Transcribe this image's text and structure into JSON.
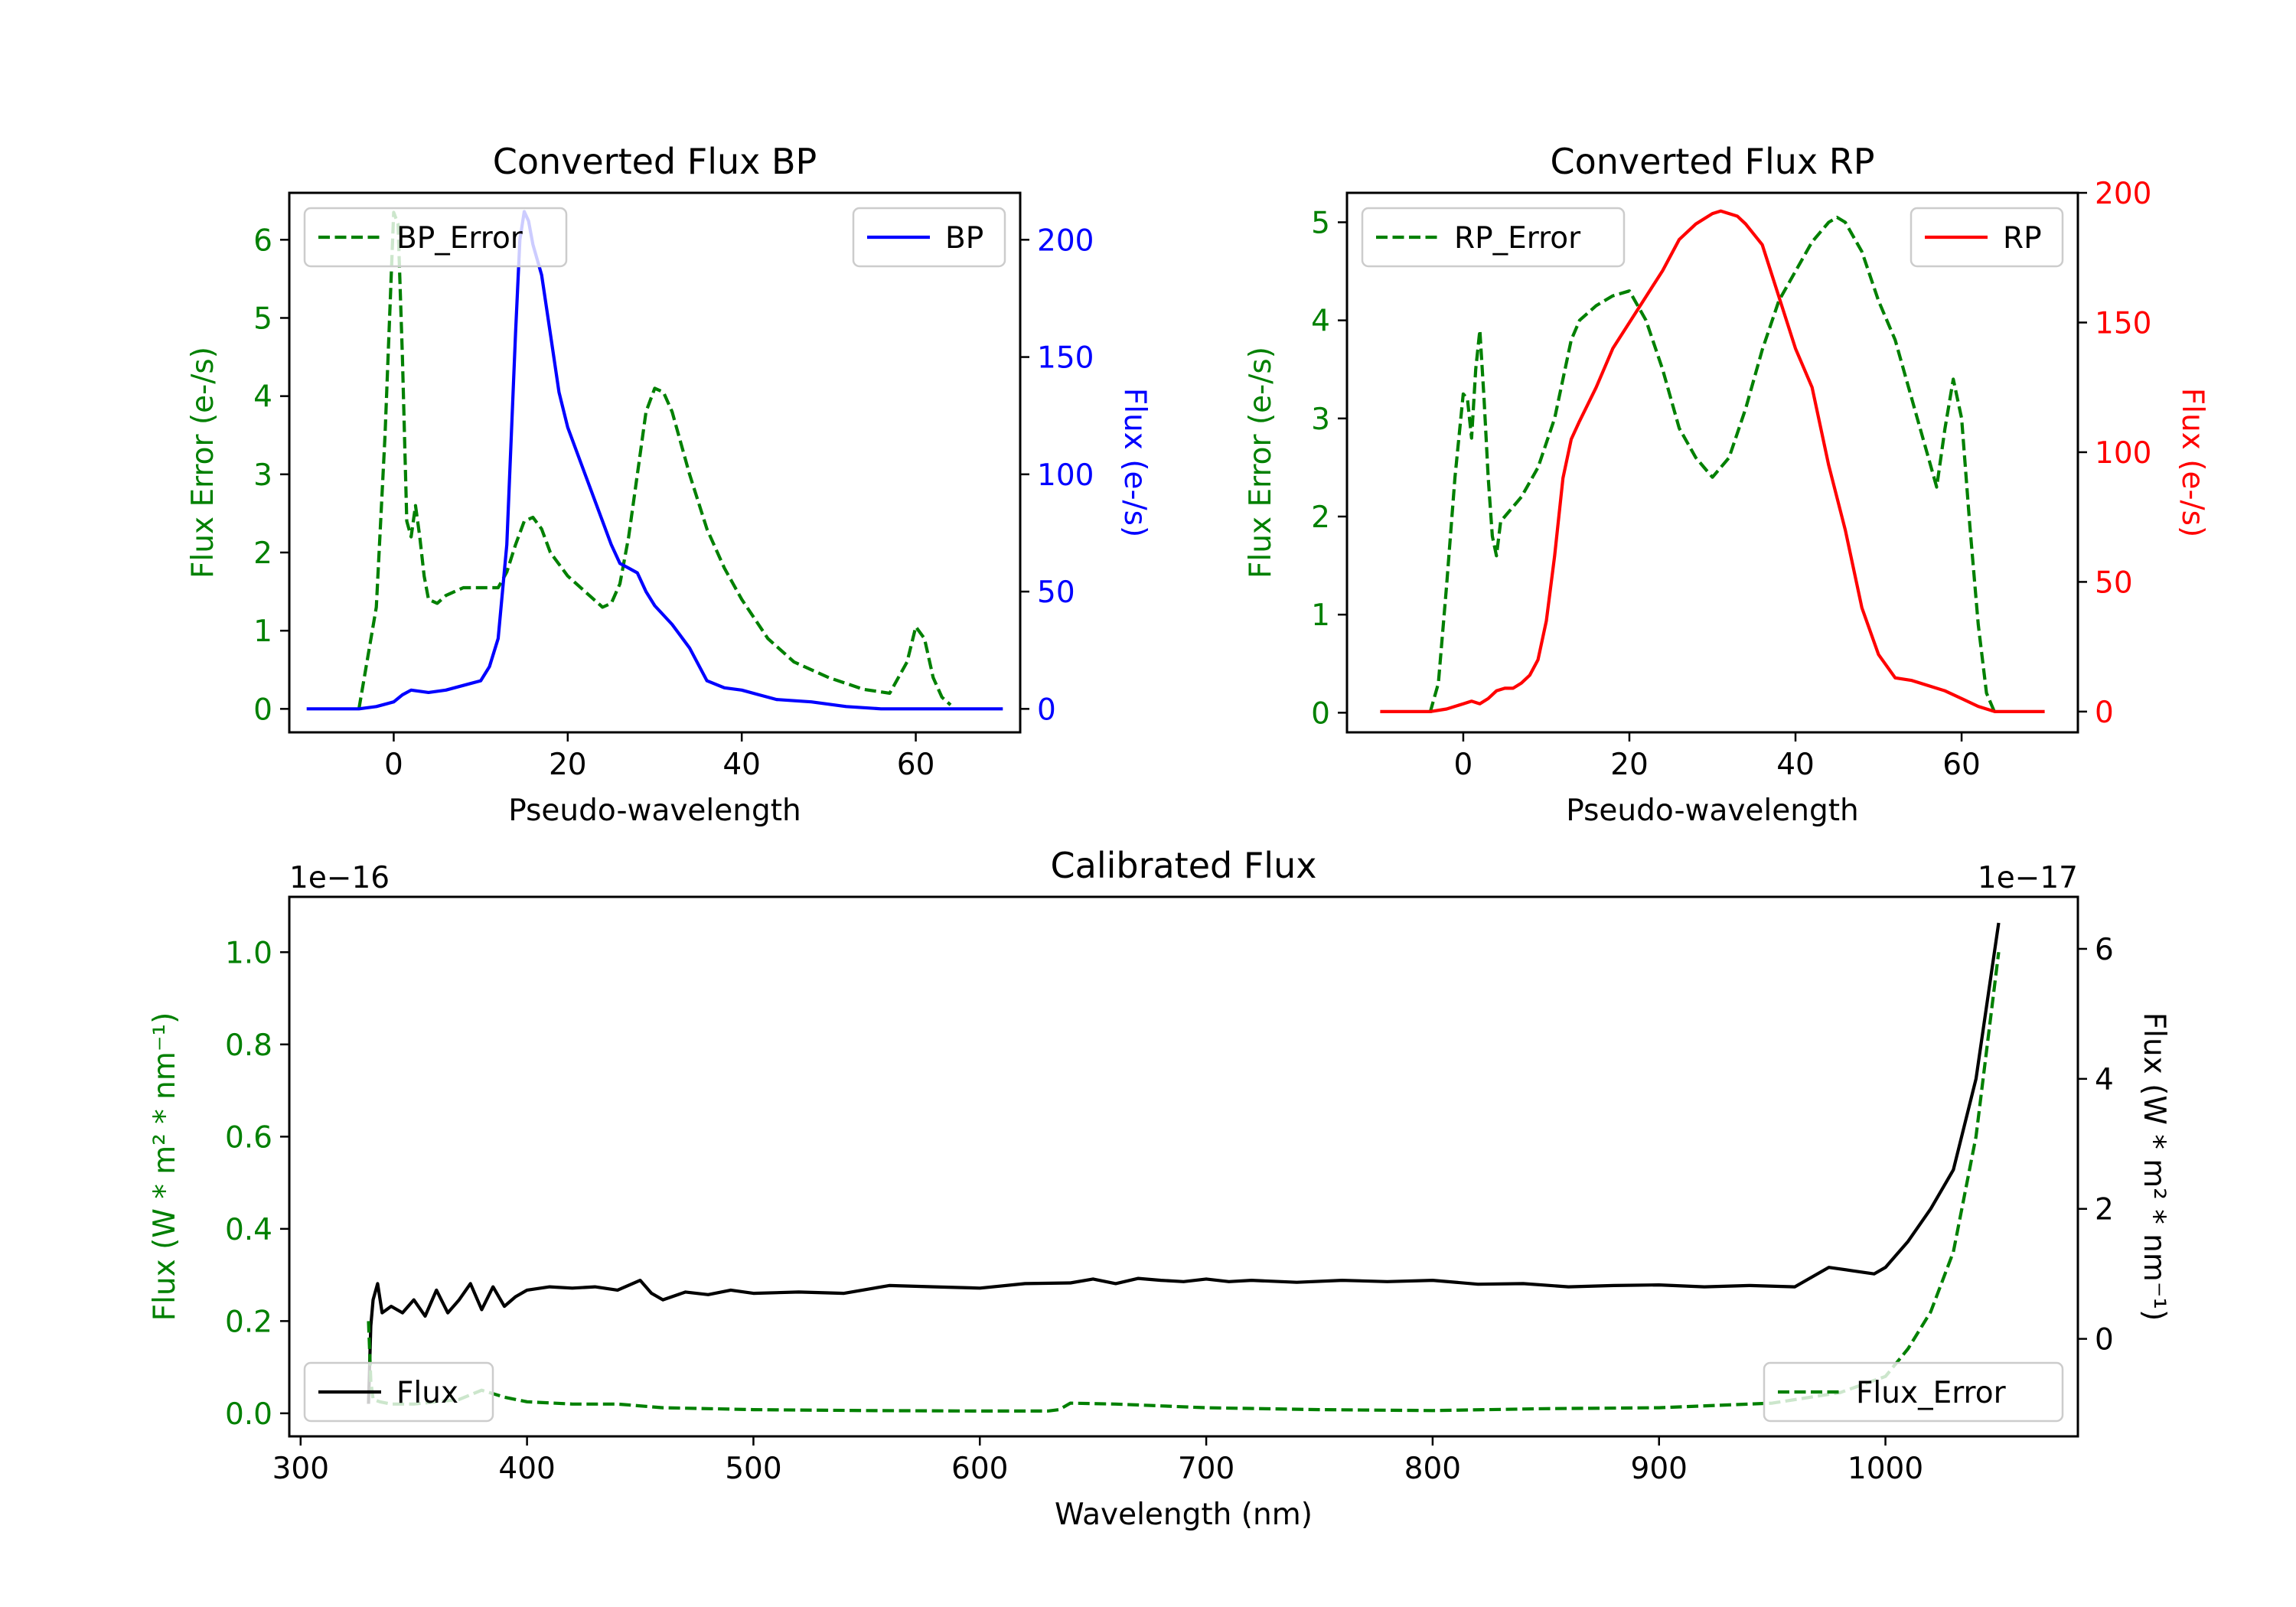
{
  "chart_data": [
    {
      "type": "line",
      "title": "Converted Flux BP",
      "xlabel": "Pseudo-wavelength",
      "ylabel_left": "Flux Error (e-/s)",
      "ylabel_right": "Flux (e-/s)",
      "xlim": [
        -12,
        72
      ],
      "ylim_left": [
        -0.3,
        6.6
      ],
      "ylim_right": [
        -10,
        220
      ],
      "xticks": [
        {
          "v": 0,
          "label": "0"
        },
        {
          "v": 20,
          "label": "20"
        },
        {
          "v": 40,
          "label": "40"
        },
        {
          "v": 60,
          "label": "60"
        }
      ],
      "yticks_left": [
        {
          "v": 0,
          "label": "0"
        },
        {
          "v": 1,
          "label": "1"
        },
        {
          "v": 2,
          "label": "2"
        },
        {
          "v": 3,
          "label": "3"
        },
        {
          "v": 4,
          "label": "4"
        },
        {
          "v": 5,
          "label": "5"
        },
        {
          "v": 6,
          "label": "6"
        }
      ],
      "yticks_right": [
        {
          "v": 0,
          "label": "0"
        },
        {
          "v": 50,
          "label": "50"
        },
        {
          "v": 100,
          "label": "100"
        },
        {
          "v": 150,
          "label": "150"
        },
        {
          "v": 200,
          "label": "200"
        }
      ],
      "left_color": "#008000",
      "right_color": "#0000ff",
      "legend_left": {
        "label": "BP_Error",
        "position": "upper-left"
      },
      "legend_right": {
        "label": "BP",
        "position": "upper-right"
      },
      "series": [
        {
          "name": "BP_Error",
          "axis": "left",
          "color": "#008000",
          "style": "dashed",
          "x": [
            -4,
            -2,
            -1,
            0,
            0.5,
            1,
            1.5,
            2,
            2.5,
            3,
            3.5,
            4,
            5,
            6,
            7,
            8,
            10,
            12,
            13,
            14,
            15,
            16,
            17,
            18,
            20,
            22,
            24,
            25,
            26,
            27,
            28,
            29,
            30,
            31,
            32,
            34,
            36,
            38,
            40,
            43,
            46,
            50,
            54,
            57,
            59,
            60,
            61,
            62,
            63,
            64
          ],
          "y": [
            0,
            1.3,
            3.5,
            6.35,
            6.2,
            4.5,
            2.4,
            2.2,
            2.6,
            2.2,
            1.7,
            1.4,
            1.35,
            1.45,
            1.5,
            1.55,
            1.55,
            1.55,
            1.75,
            2.1,
            2.4,
            2.45,
            2.3,
            2.0,
            1.7,
            1.5,
            1.3,
            1.35,
            1.6,
            2.2,
            3.0,
            3.8,
            4.1,
            4.05,
            3.8,
            3.0,
            2.3,
            1.8,
            1.4,
            0.9,
            0.6,
            0.4,
            0.25,
            0.2,
            0.6,
            1.05,
            0.9,
            0.4,
            0.15,
            0.05
          ]
        },
        {
          "name": "BP",
          "axis": "right",
          "color": "#0000ff",
          "style": "solid",
          "x": [
            -10,
            -4,
            -2,
            0,
            1,
            2,
            4,
            6,
            8,
            10,
            11,
            12,
            13,
            14,
            14.5,
            15,
            15.5,
            16,
            17,
            18,
            19,
            20,
            22,
            24,
            25,
            26,
            27,
            28,
            29,
            30,
            32,
            34,
            36,
            38,
            40,
            42,
            44,
            48,
            52,
            56,
            60,
            65,
            70
          ],
          "y": [
            0,
            0,
            1,
            3,
            6,
            8,
            7,
            8,
            10,
            12,
            18,
            30,
            70,
            160,
            200,
            212,
            208,
            198,
            185,
            160,
            135,
            120,
            100,
            80,
            70,
            62,
            60,
            58,
            50,
            44,
            36,
            26,
            12,
            9,
            8,
            6,
            4,
            3,
            1,
            0,
            0,
            0,
            0
          ]
        }
      ]
    },
    {
      "type": "line",
      "title": "Converted Flux RP",
      "xlabel": "Pseudo-wavelength",
      "ylabel_left": "Flux Error (e-/s)",
      "ylabel_right": "Flux (e-/s)",
      "xlim": [
        -14,
        74
      ],
      "ylim_left": [
        -0.2,
        5.3
      ],
      "ylim_right": [
        -8,
        200
      ],
      "xticks": [
        {
          "v": 0,
          "label": "0"
        },
        {
          "v": 20,
          "label": "20"
        },
        {
          "v": 40,
          "label": "40"
        },
        {
          "v": 60,
          "label": "60"
        }
      ],
      "yticks_left": [
        {
          "v": 0,
          "label": "0"
        },
        {
          "v": 1,
          "label": "1"
        },
        {
          "v": 2,
          "label": "2"
        },
        {
          "v": 3,
          "label": "3"
        },
        {
          "v": 4,
          "label": "4"
        },
        {
          "v": 5,
          "label": "5"
        }
      ],
      "yticks_right": [
        {
          "v": 0,
          "label": "0"
        },
        {
          "v": 50,
          "label": "50"
        },
        {
          "v": 100,
          "label": "100"
        },
        {
          "v": 150,
          "label": "150"
        },
        {
          "v": 200,
          "label": "200"
        }
      ],
      "left_color": "#008000",
      "right_color": "#ff0000",
      "legend_left": {
        "label": "RP_Error",
        "position": "upper-left"
      },
      "legend_right": {
        "label": "RP",
        "position": "upper-right"
      },
      "series": [
        {
          "name": "RP_Error",
          "axis": "left",
          "color": "#008000",
          "style": "dashed",
          "x": [
            -4,
            -3,
            -2,
            -1,
            0,
            0.5,
            1,
            1.5,
            2,
            2.5,
            3,
            3.5,
            4,
            4.5,
            5,
            7,
            9,
            11,
            13,
            14,
            16,
            18,
            20,
            22,
            24,
            26,
            28,
            30,
            32,
            34,
            36,
            38,
            40,
            42,
            44,
            45,
            46,
            48,
            50,
            52,
            54,
            55,
            56,
            57,
            58,
            59,
            60,
            61,
            62,
            63,
            64
          ],
          "y": [
            0,
            0.3,
            1.3,
            2.4,
            3.25,
            3.2,
            2.8,
            3.5,
            3.9,
            3.2,
            2.4,
            1.8,
            1.6,
            1.95,
            2.0,
            2.2,
            2.5,
            3.0,
            3.8,
            4.0,
            4.15,
            4.25,
            4.3,
            4.0,
            3.5,
            2.9,
            2.6,
            2.4,
            2.6,
            3.1,
            3.7,
            4.2,
            4.5,
            4.8,
            5.0,
            5.05,
            5.0,
            4.7,
            4.2,
            3.8,
            3.2,
            2.9,
            2.6,
            2.3,
            2.9,
            3.4,
            3.0,
            1.9,
            0.9,
            0.2,
            0
          ]
        },
        {
          "name": "RP",
          "axis": "right",
          "color": "#ff0000",
          "style": "solid",
          "x": [
            -10,
            -4,
            -2,
            0,
            1,
            2,
            3,
            4,
            5,
            6,
            7,
            8,
            9,
            10,
            11,
            12,
            13,
            14,
            16,
            18,
            20,
            22,
            24,
            26,
            28,
            30,
            31,
            32,
            33,
            34,
            36,
            38,
            40,
            42,
            44,
            46,
            48,
            50,
            52,
            54,
            56,
            58,
            60,
            62,
            64,
            66,
            70
          ],
          "y": [
            0,
            0,
            1,
            3,
            4,
            3,
            5,
            8,
            9,
            9,
            11,
            14,
            20,
            35,
            60,
            90,
            105,
            112,
            125,
            140,
            150,
            160,
            170,
            182,
            188,
            192,
            193,
            192,
            191,
            188,
            180,
            160,
            140,
            125,
            95,
            70,
            40,
            22,
            13,
            12,
            10,
            8,
            5,
            2,
            0,
            0,
            0
          ]
        }
      ]
    },
    {
      "type": "line",
      "title": "Calibrated Flux",
      "xlabel": "Wavelength (nm)",
      "ylabel_left": "Flux (W * m² * nm⁻¹)",
      "ylabel_right": "Flux (W * m² * nm⁻¹)",
      "left_offset_label": "1e−16",
      "right_offset_label": "1e−17",
      "xlim": [
        295,
        1085
      ],
      "ylim_left": [
        -0.05,
        1.12
      ],
      "ylim_right": [
        -1.5,
        6.8
      ],
      "xticks": [
        {
          "v": 300,
          "label": "300"
        },
        {
          "v": 400,
          "label": "400"
        },
        {
          "v": 500,
          "label": "500"
        },
        {
          "v": 600,
          "label": "600"
        },
        {
          "v": 700,
          "label": "700"
        },
        {
          "v": 800,
          "label": "800"
        },
        {
          "v": 900,
          "label": "900"
        },
        {
          "v": 1000,
          "label": "1000"
        }
      ],
      "yticks_left": [
        {
          "v": 0.0,
          "label": "0.0"
        },
        {
          "v": 0.2,
          "label": "0.2"
        },
        {
          "v": 0.4,
          "label": "0.4"
        },
        {
          "v": 0.6,
          "label": "0.6"
        },
        {
          "v": 0.8,
          "label": "0.8"
        },
        {
          "v": 1.0,
          "label": "1.0"
        }
      ],
      "yticks_right": [
        {
          "v": 0,
          "label": "0"
        },
        {
          "v": 2,
          "label": "2"
        },
        {
          "v": 4,
          "label": "4"
        },
        {
          "v": 6,
          "label": "6"
        }
      ],
      "left_color": "#008000",
      "right_color": "#000000",
      "legend_left": {
        "label": "Flux",
        "position": "lower-left"
      },
      "legend_right": {
        "label": "Flux_Error",
        "position": "lower-right"
      },
      "series": [
        {
          "name": "Flux",
          "axis": "right",
          "color": "#000000",
          "style": "solid",
          "x": [
            330,
            331,
            332,
            334,
            336,
            340,
            345,
            350,
            355,
            360,
            365,
            370,
            375,
            380,
            385,
            390,
            395,
            400,
            410,
            420,
            430,
            440,
            450,
            455,
            460,
            470,
            480,
            490,
            500,
            520,
            540,
            560,
            580,
            600,
            620,
            640,
            650,
            660,
            670,
            680,
            690,
            700,
            710,
            720,
            740,
            760,
            780,
            800,
            820,
            840,
            860,
            880,
            900,
            920,
            940,
            960,
            975,
            985,
            995,
            1000,
            1010,
            1020,
            1030,
            1040,
            1045,
            1050
          ],
          "y": [
            -1.0,
            0.2,
            0.6,
            0.85,
            0.4,
            0.5,
            0.4,
            0.6,
            0.35,
            0.75,
            0.4,
            0.6,
            0.85,
            0.45,
            0.8,
            0.5,
            0.65,
            0.75,
            0.8,
            0.78,
            0.8,
            0.75,
            0.9,
            0.7,
            0.6,
            0.72,
            0.68,
            0.75,
            0.7,
            0.72,
            0.7,
            0.82,
            0.8,
            0.78,
            0.85,
            0.86,
            0.92,
            0.85,
            0.93,
            0.9,
            0.88,
            0.92,
            0.88,
            0.9,
            0.87,
            0.9,
            0.88,
            0.9,
            0.84,
            0.85,
            0.8,
            0.82,
            0.83,
            0.8,
            0.82,
            0.8,
            1.1,
            1.05,
            1.0,
            1.1,
            1.5,
            2.0,
            2.6,
            4.0,
            5.2,
            6.4
          ]
        },
        {
          "name": "Flux_Error",
          "axis": "left",
          "color": "#008000",
          "style": "dashed",
          "x": [
            330,
            331,
            332,
            335,
            340,
            350,
            360,
            370,
            380,
            390,
            400,
            420,
            440,
            460,
            480,
            500,
            550,
            600,
            630,
            635,
            640,
            660,
            700,
            750,
            800,
            850,
            900,
            950,
            980,
            1000,
            1010,
            1020,
            1030,
            1040,
            1045,
            1050
          ],
          "y": [
            0.2,
            0.07,
            0.03,
            0.025,
            0.02,
            0.02,
            0.025,
            0.03,
            0.05,
            0.035,
            0.025,
            0.02,
            0.02,
            0.012,
            0.01,
            0.008,
            0.006,
            0.005,
            0.005,
            0.008,
            0.022,
            0.02,
            0.012,
            0.008,
            0.006,
            0.01,
            0.012,
            0.022,
            0.045,
            0.08,
            0.14,
            0.22,
            0.35,
            0.6,
            0.8,
            1.0
          ]
        }
      ]
    }
  ]
}
